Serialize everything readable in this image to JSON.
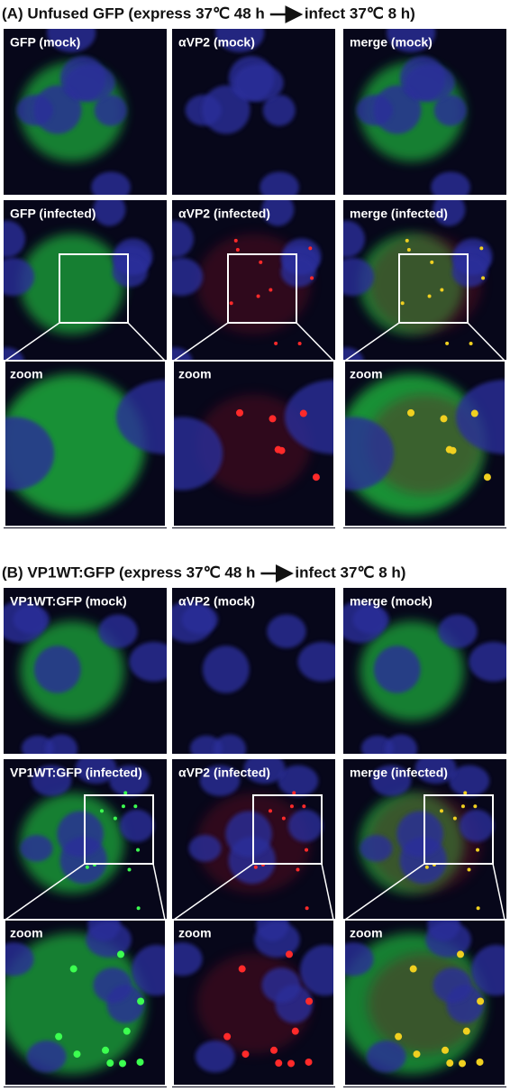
{
  "sections": [
    {
      "title_left": "(A) Unfused GFP (express 37℃ 48 h",
      "title_right": "infect 37℃ 8 h)",
      "rows": [
        [
          "GFP (mock)",
          "αVP2 (mock)",
          "merge (mock)"
        ],
        [
          "GFP (infected)",
          "αVP2 (infected)",
          "merge (infected)"
        ],
        [
          "zoom",
          "zoom",
          "zoom"
        ]
      ]
    },
    {
      "title_left": "(B) VP1WT:GFP (express 37℃ 48 h",
      "title_right": "infect 37℃ 8 h)",
      "rows": [
        [
          "VP1WT:GFP (mock)",
          "αVP2 (mock)",
          "merge (mock)"
        ],
        [
          "VP1WT:GFP (infected)",
          "αVP2 (infected)",
          "merge (infected)"
        ],
        [
          "zoom",
          "zoom",
          "zoom"
        ]
      ]
    }
  ]
}
